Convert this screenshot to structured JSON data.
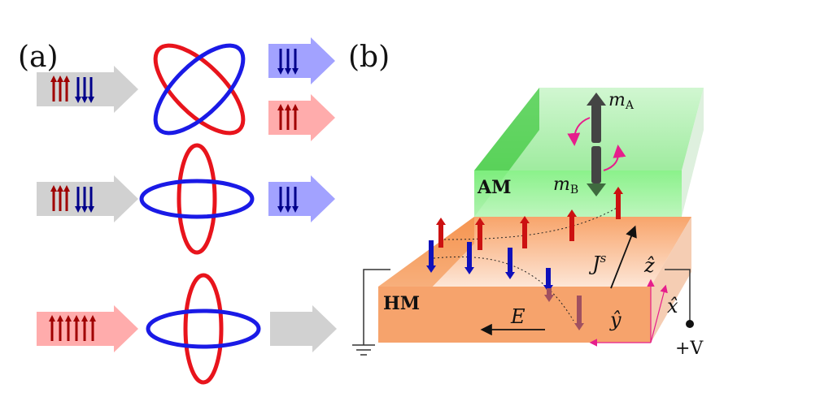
{
  "panel_a": {
    "label": "(a)",
    "rows": [
      {
        "input": "up+down",
        "output": [
          "down",
          "up"
        ]
      },
      {
        "input": "up+down",
        "output": [
          "down"
        ]
      },
      {
        "input": "up",
        "output": []
      }
    ]
  },
  "panel_b": {
    "label": "(b)",
    "am_label": "AM",
    "hm_label": "HM",
    "m_a": "m",
    "m_a_sub": "A",
    "m_b": "m",
    "m_b_sub": "B",
    "js": "J",
    "js_sup": "s",
    "e_field": "E",
    "z_axis": "ẑ",
    "x_axis": "x̂",
    "y_axis": "ŷ",
    "voltage": "+V"
  },
  "colors": {
    "red": "#e8141c",
    "blue": "#1a1ae6",
    "gray": "#c8c8c8",
    "green": "#3ccf3c",
    "orange": "#f7a26a",
    "magenta": "#e61e8c"
  }
}
